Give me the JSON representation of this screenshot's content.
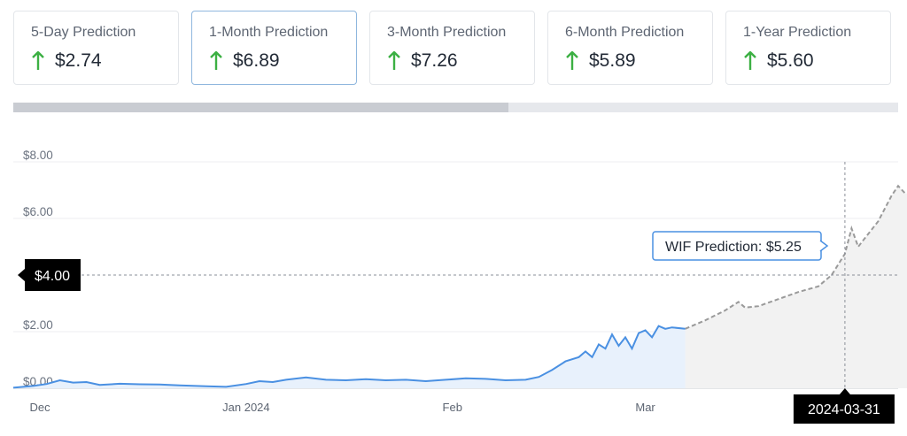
{
  "cards": [
    {
      "label": "5-Day Prediction",
      "value": "$2.74",
      "direction": "up"
    },
    {
      "label": "1-Month Prediction",
      "value": "$6.89",
      "direction": "up",
      "selected": true
    },
    {
      "label": "3-Month Prediction",
      "value": "$7.26",
      "direction": "up"
    },
    {
      "label": "6-Month Prediction",
      "value": "$5.89",
      "direction": "up"
    },
    {
      "label": "1-Year Prediction",
      "value": "$5.60",
      "direction": "up"
    }
  ],
  "scrollbar": {
    "position": 0.56
  },
  "colors": {
    "up_arrow": "#3cb043",
    "history_line": "#4a90e2",
    "history_fill": "#e8f1fc",
    "prediction_line": "#9a9a9a",
    "prediction_fill": "#f2f2f2",
    "tag_bg": "#000000",
    "tooltip_border": "#4a90e2"
  },
  "chart_data": {
    "type": "line",
    "y_ticks": [
      "$0.00",
      "$2.00",
      "$6.00",
      "$8.00"
    ],
    "ylim": [
      0,
      8
    ],
    "x_ticks": [
      "Dec",
      "Jan 2024",
      "Feb",
      "Mar"
    ],
    "xlim": [
      "2023-11-27",
      "2024-04-08"
    ],
    "grid": true,
    "series": [
      {
        "kind": "historical",
        "points": [
          [
            "2023-11-27",
            0.02
          ],
          [
            "2023-11-30",
            0.08
          ],
          [
            "2023-12-02",
            0.15
          ],
          [
            "2023-12-04",
            0.28
          ],
          [
            "2023-12-06",
            0.2
          ],
          [
            "2023-12-08",
            0.22
          ],
          [
            "2023-12-10",
            0.12
          ],
          [
            "2023-12-13",
            0.16
          ],
          [
            "2023-12-16",
            0.14
          ],
          [
            "2023-12-19",
            0.13
          ],
          [
            "2023-12-22",
            0.1
          ],
          [
            "2023-12-26",
            0.07
          ],
          [
            "2023-12-29",
            0.05
          ],
          [
            "2024-01-01",
            0.15
          ],
          [
            "2024-01-03",
            0.25
          ],
          [
            "2024-01-05",
            0.22
          ],
          [
            "2024-01-07",
            0.3
          ],
          [
            "2024-01-10",
            0.38
          ],
          [
            "2024-01-13",
            0.3
          ],
          [
            "2024-01-16",
            0.28
          ],
          [
            "2024-01-19",
            0.32
          ],
          [
            "2024-01-22",
            0.28
          ],
          [
            "2024-01-25",
            0.3
          ],
          [
            "2024-01-28",
            0.25
          ],
          [
            "2024-01-31",
            0.3
          ],
          [
            "2024-02-03",
            0.35
          ],
          [
            "2024-02-06",
            0.33
          ],
          [
            "2024-02-09",
            0.28
          ],
          [
            "2024-02-12",
            0.3
          ],
          [
            "2024-02-14",
            0.4
          ],
          [
            "2024-02-16",
            0.65
          ],
          [
            "2024-02-18",
            0.95
          ],
          [
            "2024-02-20",
            1.1
          ],
          [
            "2024-02-21",
            1.3
          ],
          [
            "2024-02-22",
            1.1
          ],
          [
            "2024-02-23",
            1.55
          ],
          [
            "2024-02-24",
            1.4
          ],
          [
            "2024-02-25",
            1.9
          ],
          [
            "2024-02-26",
            1.5
          ],
          [
            "2024-02-27",
            1.8
          ],
          [
            "2024-02-28",
            1.4
          ],
          [
            "2024-02-29",
            1.95
          ],
          [
            "2024-03-01",
            2.05
          ],
          [
            "2024-03-02",
            1.8
          ],
          [
            "2024-03-03",
            2.2
          ],
          [
            "2024-03-04",
            2.1
          ],
          [
            "2024-03-05",
            2.15
          ],
          [
            "2024-03-07",
            2.1
          ]
        ]
      },
      {
        "kind": "prediction",
        "points": [
          [
            "2024-03-07",
            2.1
          ],
          [
            "2024-03-10",
            2.4
          ],
          [
            "2024-03-13",
            2.75
          ],
          [
            "2024-03-15",
            3.05
          ],
          [
            "2024-03-16",
            2.85
          ],
          [
            "2024-03-18",
            2.9
          ],
          [
            "2024-03-21",
            3.15
          ],
          [
            "2024-03-24",
            3.4
          ],
          [
            "2024-03-27",
            3.6
          ],
          [
            "2024-03-29",
            4.0
          ],
          [
            "2024-03-31",
            4.75
          ],
          [
            "2024-04-01",
            5.65
          ],
          [
            "2024-04-02",
            5.0
          ],
          [
            "2024-04-03",
            5.3
          ],
          [
            "2024-04-05",
            5.9
          ],
          [
            "2024-04-07",
            6.8
          ],
          [
            "2024-04-08",
            7.15
          ],
          [
            "2024-04-09",
            6.9
          ],
          [
            "2024-04-10",
            6.85
          ]
        ]
      }
    ],
    "crosshair": {
      "date_label": "2024-03-31",
      "price_label": "$4.00",
      "price": 4.0
    },
    "tooltip": {
      "label": "WIF Prediction:",
      "value": "$5.25"
    }
  }
}
